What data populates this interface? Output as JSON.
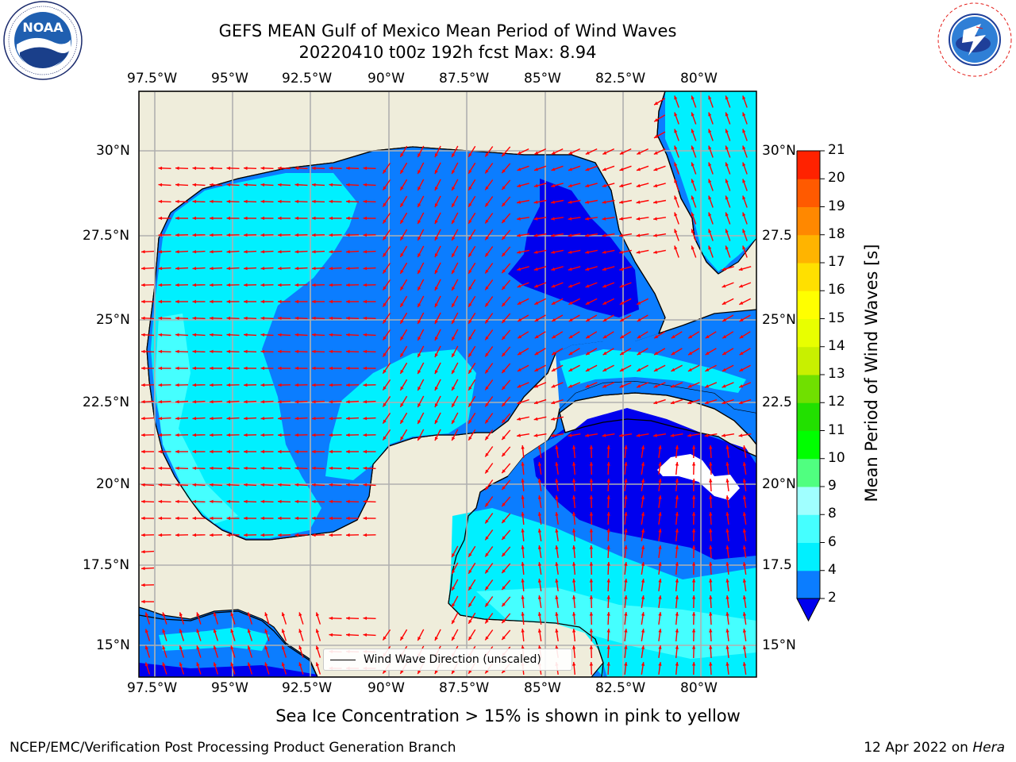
{
  "title": {
    "line1": "GEFS MEAN Gulf of Mexico Mean Period of Wind Waves",
    "line2": "20220410 t00z 192h fcst   Max: 8.94"
  },
  "axes": {
    "lon_ticks": [
      "97.5°W",
      "95°W",
      "92.5°W",
      "90°W",
      "87.5°W",
      "85°W",
      "82.5°W",
      "80°W"
    ],
    "lat_ticks_left": [
      "30°N",
      "27.5°N",
      "25°N",
      "22.5°N",
      "20°N",
      "17.5°N",
      "15°N"
    ],
    "lat_ticks_right": [
      "30°N",
      "27.5",
      "25°N",
      "22.5",
      "20°N",
      "17.5",
      "15°N"
    ]
  },
  "colorbar": {
    "label": "Mean Period of Wind Waves [s]",
    "tick_labels": [
      "2",
      "4",
      "6",
      "8",
      "9",
      "10",
      "11",
      "12",
      "13",
      "14",
      "15",
      "16",
      "17",
      "18",
      "19",
      "20",
      "21"
    ],
    "colors": [
      "#0b7dff",
      "#00f0ff",
      "#45ffff",
      "#a0ffff",
      "#50ff80",
      "#00ff00",
      "#22e000",
      "#70e000",
      "#c8f000",
      "#e8ff00",
      "#ffff00",
      "#ffe000",
      "#ffb400",
      "#ff8800",
      "#ff5a00",
      "#ff2200"
    ],
    "under_color": "#0000ee"
  },
  "legend": {
    "label": "Wind Wave Direction (unscaled)"
  },
  "notes": {
    "sea_ice": "Sea Ice Concentration > 15% is shown in pink to yellow"
  },
  "footer": {
    "left": "NCEP/EMC/Verification Post Processing Product Generation Branch",
    "date": "12 Apr 2022 on ",
    "machine": "Hera"
  },
  "logos": {
    "noaa_text": "NOAA",
    "noaa_ring": "NATIONAL OCEANIC AND ATMOSPHERIC ADMINISTRATION · U.S. DEPARTMENT OF COMMERCE ·",
    "nws_ring": "NATIONAL WEATHER SERVICE"
  },
  "colors": {
    "land": "#efeddb",
    "arrows": "#ff0000",
    "grid": "#b0b0b0"
  }
}
